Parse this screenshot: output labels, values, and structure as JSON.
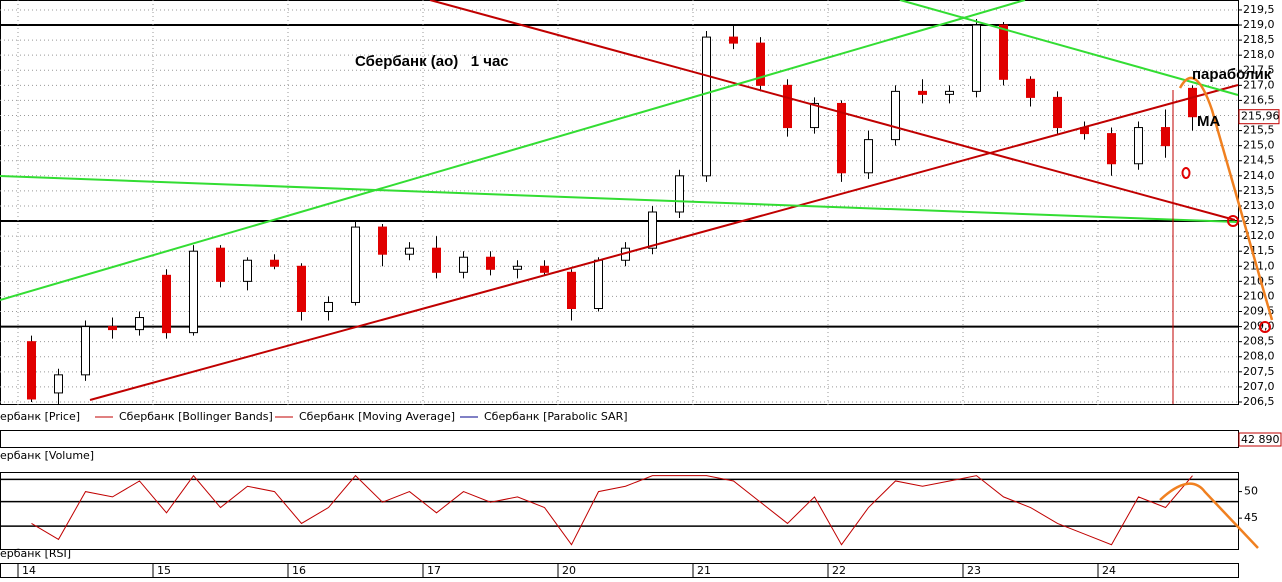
{
  "chart_data": {
    "type": "candlestick",
    "title": "Сбербанк (ао)   1 час",
    "annotations": [
      "параболик",
      "МА"
    ],
    "categories": [
      "14",
      null,
      null,
      null,
      null,
      "15",
      null,
      null,
      null,
      null,
      "16",
      null,
      null,
      null,
      null,
      "17",
      null,
      null,
      null,
      null,
      "20",
      null,
      null,
      null,
      null,
      "21",
      null,
      null,
      null,
      null,
      "22",
      null,
      null,
      null,
      null,
      "23",
      null,
      null,
      null,
      null,
      "24",
      null,
      null,
      null
    ],
    "open": [
      208.5,
      206.8,
      207.4,
      209.0,
      208.9,
      210.7,
      208.8,
      211.6,
      210.5,
      211.2,
      211.0,
      209.5,
      209.8,
      212.3,
      211.4,
      211.6,
      210.8,
      211.3,
      210.9,
      211.0,
      210.8,
      209.6,
      211.2,
      211.6,
      212.8,
      214.0,
      218.6,
      218.4,
      217.0,
      215.6,
      216.4,
      214.1,
      215.2,
      216.8,
      216.7,
      216.8,
      219.0,
      217.2,
      216.6,
      215.6,
      215.4,
      214.4,
      215.6,
      216.9
    ],
    "high": [
      208.7,
      207.6,
      209.2,
      209.3,
      209.5,
      210.9,
      211.7,
      211.7,
      211.3,
      211.4,
      211.1,
      210.0,
      212.5,
      212.4,
      211.8,
      212.0,
      211.5,
      211.5,
      211.2,
      211.2,
      210.9,
      211.3,
      211.8,
      213.0,
      214.2,
      218.8,
      219.0,
      218.6,
      217.2,
      216.6,
      216.5,
      215.5,
      217.0,
      217.2,
      217.0,
      219.2,
      219.1,
      217.3,
      216.8,
      215.8,
      215.6,
      215.8,
      216.2,
      217.0
    ],
    "low": [
      206.5,
      206.4,
      207.2,
      208.6,
      208.7,
      208.6,
      208.7,
      210.3,
      210.2,
      210.9,
      209.2,
      209.2,
      209.7,
      211.0,
      211.2,
      210.6,
      210.6,
      210.7,
      210.6,
      210.7,
      209.2,
      209.5,
      211.0,
      211.4,
      212.6,
      213.8,
      218.2,
      216.8,
      215.3,
      215.4,
      213.8,
      213.9,
      215.0,
      216.4,
      216.4,
      216.6,
      217.0,
      216.3,
      215.4,
      215.2,
      214.0,
      214.2,
      214.6,
      215.5
    ],
    "close": [
      206.6,
      207.4,
      209.0,
      208.9,
      209.3,
      208.8,
      211.5,
      210.5,
      211.2,
      211.0,
      209.5,
      209.8,
      212.3,
      211.4,
      211.6,
      210.8,
      211.3,
      210.9,
      211.0,
      210.8,
      209.6,
      211.2,
      211.6,
      212.8,
      214.0,
      218.6,
      218.4,
      217.0,
      215.6,
      216.4,
      214.1,
      215.2,
      216.8,
      216.7,
      216.8,
      219.0,
      217.2,
      216.6,
      215.6,
      215.4,
      214.4,
      215.6,
      215.0,
      215.96
    ],
    "up_color": "#ffffff",
    "down_color": "#e00000",
    "outline_color": "#000000",
    "ylim": [
      206.4,
      219.83
    ],
    "yticks": [
      {
        "value": 206.5,
        "label": "206,5"
      },
      {
        "value": 207,
        "label": "207,0"
      },
      {
        "value": 207.5,
        "label": "207,5"
      },
      {
        "value": 208,
        "label": "208,0"
      },
      {
        "value": 208.5,
        "label": "208,5"
      },
      {
        "value": 209,
        "label": "209,0"
      },
      {
        "value": 209.5,
        "label": "209,5"
      },
      {
        "value": 210,
        "label": "210,0"
      },
      {
        "value": 210.5,
        "label": "210,5"
      },
      {
        "value": 211,
        "label": "211,0"
      },
      {
        "value": 211.5,
        "label": "211,5"
      },
      {
        "value": 212,
        "label": "212,0"
      },
      {
        "value": 212.5,
        "label": "212,5"
      },
      {
        "value": 213,
        "label": "213,0"
      },
      {
        "value": 213.5,
        "label": "213,5"
      },
      {
        "value": 214,
        "label": "214,0"
      },
      {
        "value": 214.5,
        "label": "214,5"
      },
      {
        "value": 215,
        "label": "215,0"
      },
      {
        "value": 215.5,
        "label": "215,5"
      },
      {
        "value": 216,
        "label": "216,0"
      },
      {
        "value": 216.5,
        "label": "216,5"
      },
      {
        "value": 217,
        "label": "217,0"
      },
      {
        "value": 217.5,
        "label": "217,5"
      },
      {
        "value": 218,
        "label": "218,0"
      },
      {
        "value": 218.5,
        "label": "218,5"
      },
      {
        "value": 219,
        "label": "219,0"
      },
      {
        "value": 219.5,
        "label": "219,5"
      }
    ],
    "grid": true,
    "hlines": [
      219,
      212.5,
      209
    ],
    "last_price": {
      "value": 215.96,
      "label": "215,96"
    },
    "legend": [
      {
        "label": "ербанк [Price]",
        "color": "#c00000"
      },
      {
        "label": "Сбербанк [Bollinger Bands]",
        "color": "#c00000"
      },
      {
        "label": "Сбербанк [Moving Average]",
        "color": "#c00000"
      },
      {
        "label": "Сбербанк [Parabolic SAR]",
        "color": "#00008b"
      }
    ],
    "volume": {
      "label": "ербанк [Volume]",
      "last": {
        "value": 42890,
        "label": "42 890"
      }
    },
    "rsi": {
      "label": "ербанк [RSI]",
      "color": "#c00000",
      "values": [
        44,
        41,
        50,
        49,
        52,
        46,
        53,
        47,
        51,
        50,
        44,
        47,
        53,
        48,
        50,
        46,
        50,
        48,
        49,
        47,
        40,
        50,
        51,
        53,
        53,
        53,
        52,
        48,
        44,
        49,
        40,
        47,
        52,
        51,
        52,
        53,
        49,
        47,
        44,
        42,
        40,
        49,
        47,
        53
      ],
      "ylim": [
        39,
        53.5
      ],
      "yticks": [
        45,
        50
      ],
      "levels": [
        52.3,
        48.1,
        43.5
      ]
    }
  }
}
